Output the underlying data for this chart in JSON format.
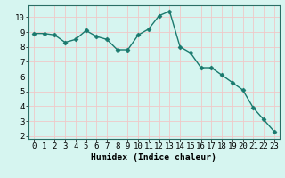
{
  "x": [
    0,
    1,
    2,
    3,
    4,
    5,
    6,
    7,
    8,
    9,
    10,
    11,
    12,
    13,
    14,
    15,
    16,
    17,
    18,
    19,
    20,
    21,
    22,
    23
  ],
  "y": [
    8.9,
    8.9,
    8.8,
    8.3,
    8.5,
    9.1,
    8.7,
    8.5,
    7.8,
    7.8,
    8.8,
    9.2,
    10.1,
    10.4,
    8.0,
    7.6,
    6.6,
    6.6,
    6.1,
    5.6,
    5.1,
    3.9,
    3.1,
    2.3
  ],
  "line_color": "#1a7a6e",
  "marker": "D",
  "marker_size": 2.5,
  "bg_color": "#d6f5f0",
  "grid_color": "#f0c8c8",
  "xlabel": "Humidex (Indice chaleur)",
  "xlim": [
    -0.5,
    23.5
  ],
  "ylim": [
    1.8,
    10.8
  ],
  "yticks": [
    2,
    3,
    4,
    5,
    6,
    7,
    8,
    9,
    10
  ],
  "xticks": [
    0,
    1,
    2,
    3,
    4,
    5,
    6,
    7,
    8,
    9,
    10,
    11,
    12,
    13,
    14,
    15,
    16,
    17,
    18,
    19,
    20,
    21,
    22,
    23
  ],
  "label_fontsize": 7,
  "tick_fontsize": 6.5
}
